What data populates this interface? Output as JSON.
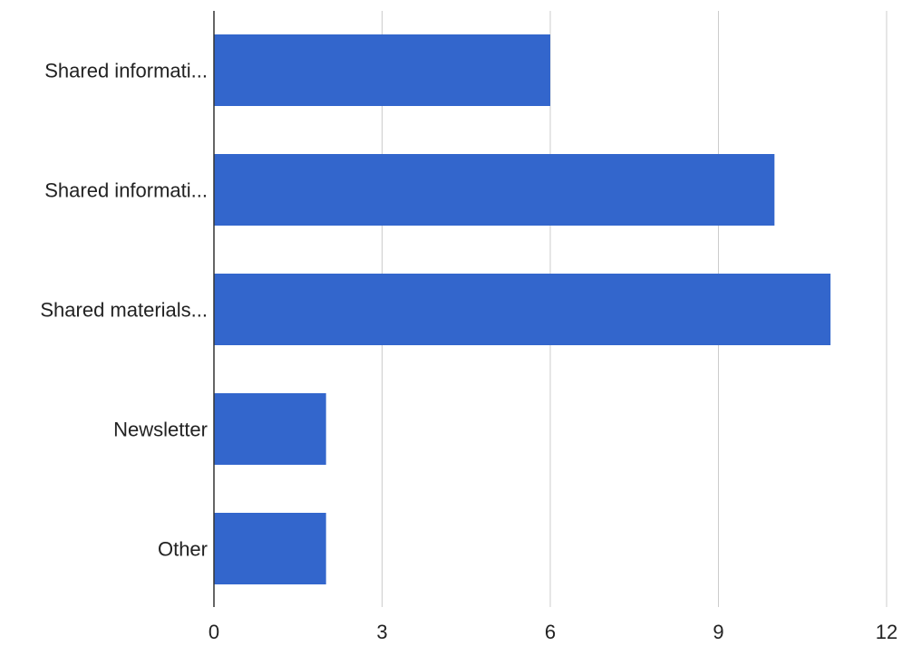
{
  "chart_data": {
    "type": "bar",
    "orientation": "horizontal",
    "categories": [
      "Shared informati...",
      "Shared informati...",
      "Shared materials...",
      "Newsletter",
      "Other"
    ],
    "values": [
      6,
      10,
      11,
      2,
      2
    ],
    "xlim": [
      0,
      12
    ],
    "x_ticks": [
      0,
      3,
      6,
      9,
      12
    ],
    "title": "",
    "xlabel": "",
    "ylabel": "",
    "grid": "vertical",
    "legend": "none",
    "bar_color": "#3366cc"
  }
}
